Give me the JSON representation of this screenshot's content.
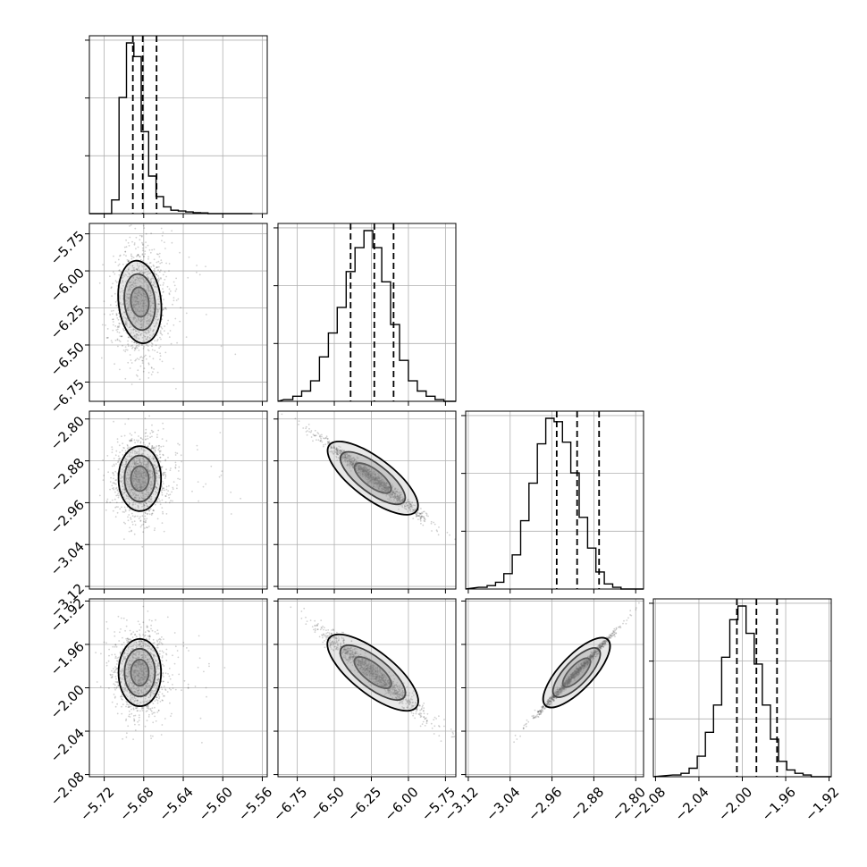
{
  "chart_data": {
    "type": "corner",
    "grid": true,
    "parameters": [
      {
        "ticks": [
          -5.72,
          -5.68,
          -5.64,
          -5.6,
          -5.56
        ],
        "tick_labels": [
          "−5.72",
          "−5.68",
          "−5.64",
          "−5.60",
          "−5.56"
        ],
        "range": [
          -5.735,
          -5.555
        ],
        "quantiles": [
          -5.691,
          -5.681,
          -5.667
        ],
        "hist_edges_start": -5.72,
        "hist_bin_width": 0.0075,
        "hist_counts": [
          0,
          0.08,
          0.68,
          1.0,
          0.92,
          0.48,
          0.22,
          0.1,
          0.04,
          0.02,
          0.015,
          0.01,
          0.006,
          0.004,
          0,
          0,
          0,
          0,
          0,
          0
        ]
      },
      {
        "ticks": [
          -6.75,
          -6.5,
          -6.25,
          -6.0,
          -5.75
        ],
        "tick_labels": [
          "−6.75",
          "−6.50",
          "−6.25",
          "−6.00",
          "−5.75"
        ],
        "range": [
          -6.88,
          -5.68
        ],
        "quantiles": [
          -6.39,
          -6.23,
          -6.1
        ],
        "hist_edges_start": -6.84,
        "hist_bin_width": 0.06,
        "hist_counts": [
          0.01,
          0.03,
          0.06,
          0.12,
          0.26,
          0.4,
          0.55,
          0.76,
          0.9,
          1.0,
          0.9,
          0.7,
          0.45,
          0.24,
          0.12,
          0.06,
          0.03,
          0.01,
          0,
          0
        ]
      },
      {
        "ticks": [
          -3.12,
          -3.04,
          -2.96,
          -2.88,
          -2.8
        ],
        "tick_labels": [
          "−3.12",
          "−3.04",
          "−2.96",
          "−2.88",
          "−2.80"
        ],
        "range": [
          -3.125,
          -2.785
        ],
        "quantiles": [
          -2.951,
          -2.912,
          -2.87
        ],
        "hist_edges_start": -3.1,
        "hist_bin_width": 0.016,
        "hist_counts": [
          0.01,
          0.02,
          0.04,
          0.09,
          0.2,
          0.4,
          0.62,
          0.85,
          1.0,
          0.98,
          0.86,
          0.68,
          0.42,
          0.24,
          0.1,
          0.03,
          0.01,
          0,
          0,
          0
        ]
      },
      {
        "ticks": [
          -2.08,
          -2.04,
          -2.0,
          -1.96,
          -1.92
        ],
        "tick_labels": [
          "−2.08",
          "−2.04",
          "−2.00",
          "−1.96",
          "−1.92"
        ],
        "range": [
          -2.082,
          -1.918
        ],
        "quantiles": [
          -2.005,
          -1.987,
          -1.968
        ],
        "hist_edges_start": -2.064,
        "hist_bin_width": 0.0075,
        "hist_counts": [
          0.01,
          0.02,
          0.05,
          0.12,
          0.26,
          0.42,
          0.7,
          0.92,
          1.0,
          0.84,
          0.66,
          0.42,
          0.22,
          0.09,
          0.04,
          0.02,
          0.01,
          0,
          0,
          0
        ]
      }
    ],
    "joint": [
      {
        "pair": [
          0,
          1
        ],
        "mean": [
          -5.684,
          -6.21
        ],
        "sd": [
          0.013,
          0.19
        ],
        "corr": 0.05,
        "contours": [
          {
            "rx": 0.009,
            "ry": 0.1
          },
          {
            "rx": 0.0155,
            "ry": 0.19
          },
          {
            "rx": 0.0215,
            "ry": 0.28
          }
        ]
      },
      {
        "pair": [
          0,
          2
        ],
        "mean": [
          -5.684,
          -2.914
        ],
        "sd": [
          0.013,
          0.038
        ],
        "corr": 0.0,
        "contours": [
          {
            "rx": 0.009,
            "ry": 0.024
          },
          {
            "rx": 0.0155,
            "ry": 0.044
          },
          {
            "rx": 0.0215,
            "ry": 0.062
          }
        ]
      },
      {
        "pair": [
          1,
          2
        ],
        "mean": [
          -6.24,
          -2.913
        ],
        "sd": [
          0.17,
          0.037
        ],
        "corr": -0.985,
        "contours": [
          {
            "rx": 0.17,
            "ry": 0.03
          },
          {
            "rx": 0.3,
            "ry": 0.05
          },
          {
            "rx": 0.42,
            "ry": 0.07
          }
        ]
      },
      {
        "pair": [
          0,
          3
        ],
        "mean": [
          -5.684,
          -1.986
        ],
        "sd": [
          0.013,
          0.02
        ],
        "corr": 0.0,
        "contours": [
          {
            "rx": 0.009,
            "ry": 0.012
          },
          {
            "rx": 0.0155,
            "ry": 0.022
          },
          {
            "rx": 0.0215,
            "ry": 0.031
          }
        ]
      },
      {
        "pair": [
          1,
          3
        ],
        "mean": [
          -6.24,
          -1.986
        ],
        "sd": [
          0.17,
          0.019
        ],
        "corr": -0.97,
        "contours": [
          {
            "rx": 0.17,
            "ry": 0.015
          },
          {
            "rx": 0.3,
            "ry": 0.025
          },
          {
            "rx": 0.42,
            "ry": 0.035
          }
        ]
      },
      {
        "pair": [
          2,
          3
        ],
        "mean": [
          -2.913,
          -1.986
        ],
        "sd": [
          0.037,
          0.019
        ],
        "corr": 0.995,
        "contours": [
          {
            "rx": 0.035,
            "ry": 0.012
          },
          {
            "rx": 0.06,
            "ry": 0.02
          },
          {
            "rx": 0.085,
            "ry": 0.028
          }
        ]
      }
    ]
  }
}
